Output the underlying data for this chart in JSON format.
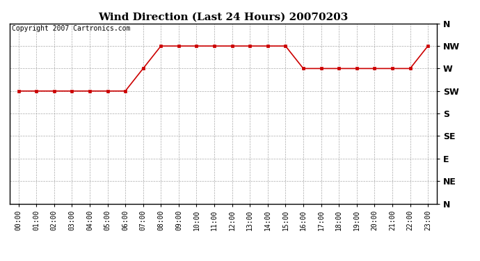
{
  "title": "Wind Direction (Last 24 Hours) 20070203",
  "copyright": "Copyright 2007 Cartronics.com",
  "x_labels": [
    "00:00",
    "01:00",
    "02:00",
    "03:00",
    "04:00",
    "05:00",
    "06:00",
    "07:00",
    "08:00",
    "09:00",
    "10:00",
    "11:00",
    "12:00",
    "13:00",
    "14:00",
    "15:00",
    "16:00",
    "17:00",
    "18:00",
    "19:00",
    "20:00",
    "21:00",
    "22:00",
    "23:00"
  ],
  "y_labels": [
    "N",
    "NW",
    "W",
    "SW",
    "S",
    "SE",
    "E",
    "NE",
    "N"
  ],
  "y_values": [
    8,
    7,
    6,
    5,
    4,
    3,
    2,
    1,
    0
  ],
  "wind_data": [
    5,
    5,
    5,
    5,
    5,
    5,
    5,
    6,
    7,
    7,
    7,
    7,
    7,
    7,
    7,
    7,
    6,
    6,
    6,
    6,
    6,
    6,
    6,
    7
  ],
  "line_color": "#cc0000",
  "marker": "s",
  "marker_color": "#cc0000",
  "marker_size": 3,
  "bg_color": "#ffffff",
  "grid_color": "#aaaaaa",
  "title_fontsize": 11,
  "tick_fontsize": 7,
  "copyright_fontsize": 7,
  "ytick_fontsize": 9
}
